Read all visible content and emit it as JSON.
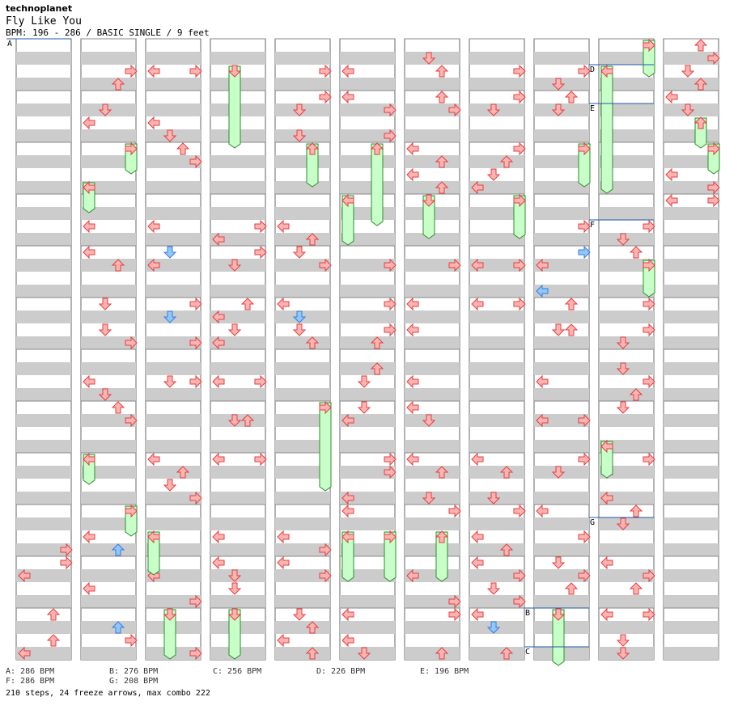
{
  "header": {
    "artist": "technoplanet",
    "title": "Fly Like You",
    "info": "BPM: 196 - 286 / BASIC SINGLE / 9 feet"
  },
  "bpm_legend": [
    "A: 286 BPM",
    "B: 276 BPM",
    "C: 256 BPM",
    "D: 226 BPM",
    "E: 196 BPM",
    "F: 286 BPM",
    "G: 208 BPM"
  ],
  "totals": "210 steps, 24 freeze arrows, max combo 222",
  "bpm_markers": [
    {
      "label": "A",
      "column": 0,
      "measure": 0,
      "beat": 0
    },
    {
      "label": "B",
      "column": 8,
      "measure": 11,
      "beat": 0
    },
    {
      "label": "C",
      "column": 8,
      "measure": 11,
      "beat": 3
    },
    {
      "label": "D",
      "column": 9,
      "measure": 0,
      "beat": 2
    },
    {
      "label": "E",
      "column": 9,
      "measure": 1,
      "beat": 1
    },
    {
      "label": "F",
      "column": 9,
      "measure": 3,
      "beat": 2
    },
    {
      "label": "G",
      "column": 9,
      "measure": 9,
      "beat": 1
    }
  ],
  "colors": {
    "arrow": "#ffb4b4",
    "arrow_stroke": "#e53e3e",
    "blue": "#8ec8ff",
    "blue_stroke": "#3a7bd5",
    "freeze": "#c8ffc8",
    "freeze_stroke": "#2e8b2e",
    "stripe": "#cccccc",
    "bpm_line": "#1e5aa8"
  }
}
